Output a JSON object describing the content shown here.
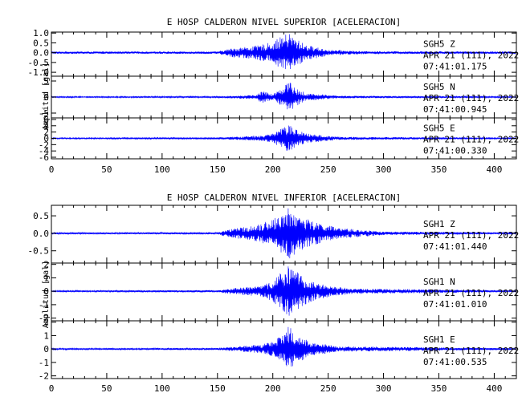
{
  "colors": {
    "trace": "#0000ff",
    "axis": "#000000",
    "background": "#ffffff"
  },
  "chart_data": [
    {
      "type": "line",
      "title": "E HOSP CALDERON NIVEL SUPERIOR [ACELERACION]",
      "xlabel": "",
      "ylabel": "Amplitud  [gal]",
      "xlim": [
        0,
        420
      ],
      "xticks": [
        "0",
        "50",
        "100",
        "150",
        "200",
        "250",
        "300",
        "350",
        "400"
      ],
      "grid": false,
      "panels": [
        {
          "ylim": [
            -1.2,
            1.05
          ],
          "yticks": [
            "1.0",
            "0.5",
            "0.0",
            "-0.5",
            "-1.0"
          ],
          "station_label": "SGH5   Z",
          "date_label": "APR 21 (111), 2022",
          "time_label": "07:41:01.175",
          "envelope": {
            "x": [
              0,
              150,
              165,
              185,
              200,
              210,
              215,
              220,
              230,
              250,
              280,
              420
            ],
            "amplitude": [
              0.06,
              0.06,
              0.25,
              0.35,
              0.55,
              0.9,
              1.0,
              0.75,
              0.4,
              0.15,
              0.08,
              0.06
            ]
          }
        },
        {
          "ylim": [
            -6.5,
            6.5
          ],
          "yticks": [
            "5",
            "0",
            "-5"
          ],
          "station_label": "SGH5   N",
          "date_label": "APR 21 (111), 2022",
          "time_label": "07:41:00.945",
          "envelope": {
            "x": [
              0,
              150,
              170,
              185,
              190,
              200,
              210,
              215,
              220,
              230,
              260,
              420
            ],
            "amplitude": [
              0.2,
              0.25,
              0.5,
              0.6,
              2.0,
              0.8,
              3.5,
              5.5,
              3.0,
              1.2,
              0.4,
              0.2
            ]
          }
        },
        {
          "ylim": [
            -6.5,
            6.5
          ],
          "yticks": [
            "6",
            "4",
            "2",
            "0",
            "-2",
            "-4",
            "-6"
          ],
          "station_label": "SGH5   E",
          "date_label": "APR 21 (111), 2022",
          "time_label": "07:41:00.330",
          "envelope": {
            "x": [
              0,
              150,
              170,
              190,
              200,
              210,
              215,
              220,
              230,
              260,
              420
            ],
            "amplitude": [
              0.2,
              0.3,
              0.6,
              0.9,
              1.5,
              3.5,
              4.5,
              3.0,
              1.5,
              0.5,
              0.2
            ]
          }
        }
      ]
    },
    {
      "type": "line",
      "title": "E HOSP CALDERON NIVEL INFERIOR [ACELERACION]",
      "xlabel": "",
      "ylabel": "Amplitud  [gal]",
      "xlim": [
        0,
        420
      ],
      "xticks": [
        "0",
        "50",
        "100",
        "150",
        "200",
        "250",
        "300",
        "350",
        "400"
      ],
      "grid": false,
      "panels": [
        {
          "ylim": [
            -0.85,
            0.8
          ],
          "yticks": [
            "0.5",
            "0.0",
            "-0.5"
          ],
          "station_label": "SGH1   Z",
          "date_label": "APR 21 (111), 2022",
          "time_label": "07:41:01.440",
          "envelope": {
            "x": [
              0,
              150,
              160,
              180,
              200,
              210,
              215,
              220,
              235,
              260,
              300,
              420
            ],
            "amplitude": [
              0.025,
              0.03,
              0.12,
              0.2,
              0.4,
              0.6,
              0.75,
              0.6,
              0.35,
              0.15,
              0.05,
              0.025
            ]
          }
        },
        {
          "ylim": [
            -2.2,
            2.1
          ],
          "yticks": [
            "2",
            "1",
            "0",
            "-1",
            "-2"
          ],
          "station_label": "SGH1   N",
          "date_label": "APR 21 (111), 2022",
          "time_label": "07:41:01.010",
          "envelope": {
            "x": [
              0,
              150,
              165,
              190,
              200,
              210,
              215,
              225,
              240,
              270,
              420
            ],
            "amplitude": [
              0.06,
              0.08,
              0.25,
              0.4,
              0.8,
              1.6,
              2.0,
              1.2,
              0.6,
              0.2,
              0.06
            ]
          }
        },
        {
          "ylim": [
            -2.2,
            2.1
          ],
          "yticks": [
            "2",
            "1",
            "0",
            "-1",
            "-2"
          ],
          "station_label": "SGH1   E",
          "date_label": "APR 21 (111), 2022",
          "time_label": "07:41:00.535",
          "envelope": {
            "x": [
              0,
              150,
              170,
              190,
              200,
              210,
              215,
              220,
              235,
              260,
              420
            ],
            "amplitude": [
              0.06,
              0.08,
              0.2,
              0.35,
              0.55,
              1.2,
              1.9,
              1.1,
              0.5,
              0.2,
              0.06
            ]
          }
        }
      ]
    }
  ]
}
